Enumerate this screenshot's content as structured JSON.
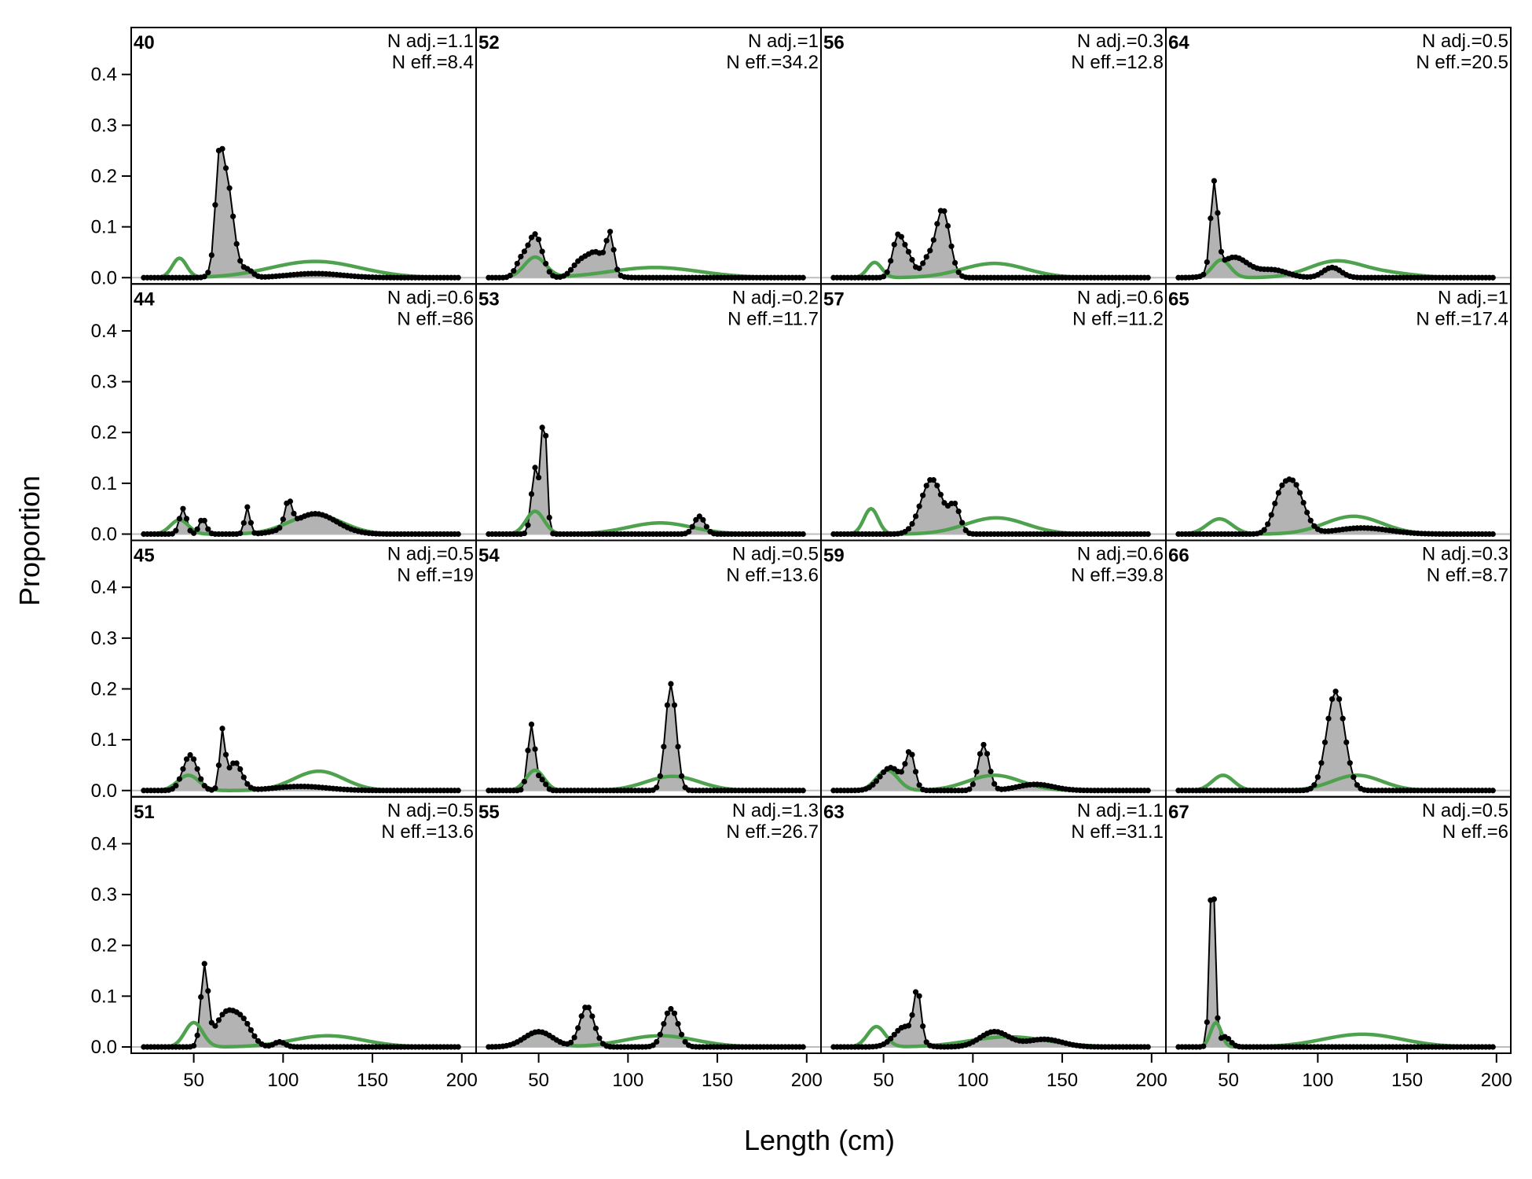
{
  "chart_data": {
    "type": "line",
    "xlabel": "Length (cm)",
    "ylabel": "Proportion",
    "xlim": [
      15,
      208
    ],
    "ylim": [
      0,
      0.48
    ],
    "x_ticks": [
      50,
      100,
      150,
      200
    ],
    "y_ticks": [
      0.0,
      0.1,
      0.2,
      0.3,
      0.4
    ],
    "y_tick_labels": [
      "0.0",
      "0.1",
      "0.2",
      "0.3",
      "0.4"
    ],
    "layout": {
      "rows": 4,
      "cols": 4
    },
    "colors": {
      "observed_line": "#000000",
      "observed_fill": "#b3b3b3",
      "expected_line": "#4ea24e",
      "zero_line": "#bdbdbd",
      "frame": "#000000"
    },
    "panels": [
      {
        "label": "40",
        "n_adj": "N adj.=1.1",
        "n_eff": "N eff.=8.4",
        "row": 0,
        "col": 0,
        "obs_peaks": [
          [
            68,
            0.198,
            4
          ],
          [
            64,
            0.13,
            2
          ],
          [
            118,
            0.008,
            15
          ],
          [
            80,
            0.015,
            3
          ]
        ],
        "exp_peaks": [
          [
            42,
            0.038,
            4
          ],
          [
            118,
            0.032,
            25
          ]
        ]
      },
      {
        "label": "52",
        "n_adj": "N adj.=1",
        "n_eff": "N eff.=34.2",
        "row": 0,
        "col": 1,
        "obs_peaks": [
          [
            48,
            0.085,
            4
          ],
          [
            40,
            0.03,
            3
          ],
          [
            82,
            0.05,
            6
          ],
          [
            90,
            0.07,
            2
          ],
          [
            72,
            0.02,
            4
          ]
        ],
        "exp_peaks": [
          [
            48,
            0.04,
            6
          ],
          [
            115,
            0.02,
            25
          ]
        ]
      },
      {
        "label": "56",
        "n_adj": "N adj.=0.3",
        "n_eff": "N eff.=12.8",
        "row": 0,
        "col": 2,
        "obs_peaks": [
          [
            58,
            0.08,
            3
          ],
          [
            64,
            0.04,
            3
          ],
          [
            83,
            0.135,
            4
          ],
          [
            74,
            0.03,
            3
          ]
        ],
        "exp_peaks": [
          [
            45,
            0.03,
            4
          ],
          [
            112,
            0.028,
            18
          ]
        ]
      },
      {
        "label": "64",
        "n_adj": "N adj.=0.5",
        "n_eff": "N eff.=20.5",
        "row": 0,
        "col": 3,
        "obs_peaks": [
          [
            42,
            0.175,
            2
          ],
          [
            53,
            0.04,
            8
          ],
          [
            75,
            0.015,
            8
          ],
          [
            108,
            0.02,
            5
          ]
        ],
        "exp_peaks": [
          [
            46,
            0.035,
            5
          ],
          [
            110,
            0.032,
            15
          ],
          [
            140,
            0.008,
            15
          ]
        ]
      },
      {
        "label": "44",
        "n_adj": "N adj.=0.6",
        "n_eff": "N eff.=86",
        "row": 1,
        "col": 0,
        "obs_peaks": [
          [
            44,
            0.05,
            2
          ],
          [
            55,
            0.03,
            2
          ],
          [
            80,
            0.053,
            1.5
          ],
          [
            118,
            0.04,
            12
          ],
          [
            103,
            0.05,
            2
          ]
        ],
        "exp_peaks": [
          [
            42,
            0.028,
            5
          ],
          [
            118,
            0.038,
            15
          ]
        ]
      },
      {
        "label": "53",
        "n_adj": "N adj.=0.2",
        "n_eff": "N eff.=11.7",
        "row": 1,
        "col": 1,
        "obs_peaks": [
          [
            53,
            0.24,
            1.5
          ],
          [
            48,
            0.13,
            2
          ],
          [
            140,
            0.035,
            3
          ]
        ],
        "exp_peaks": [
          [
            48,
            0.045,
            5
          ],
          [
            118,
            0.022,
            18
          ]
        ]
      },
      {
        "label": "57",
        "n_adj": "N adj.=0.6",
        "n_eff": "N eff.=11.2",
        "row": 1,
        "col": 2,
        "obs_peaks": [
          [
            77,
            0.108,
            6
          ],
          [
            90,
            0.05,
            3
          ]
        ],
        "exp_peaks": [
          [
            43,
            0.05,
            4
          ],
          [
            113,
            0.032,
            17
          ]
        ]
      },
      {
        "label": "65",
        "n_adj": "N adj.=1",
        "n_eff": "N eff.=17.4",
        "row": 1,
        "col": 3,
        "obs_peaks": [
          [
            86,
            0.1,
            6
          ],
          [
            78,
            0.04,
            4
          ],
          [
            125,
            0.012,
            15
          ]
        ],
        "exp_peaks": [
          [
            45,
            0.03,
            7
          ],
          [
            120,
            0.035,
            16
          ]
        ]
      },
      {
        "label": "45",
        "n_adj": "N adj.=0.5",
        "n_eff": "N eff.=19",
        "row": 2,
        "col": 0,
        "obs_peaks": [
          [
            48,
            0.07,
            4
          ],
          [
            66,
            0.11,
            1.5
          ],
          [
            73,
            0.055,
            4
          ],
          [
            110,
            0.008,
            15
          ]
        ],
        "exp_peaks": [
          [
            47,
            0.03,
            6
          ],
          [
            120,
            0.038,
            14
          ]
        ]
      },
      {
        "label": "54",
        "n_adj": "N adj.=0.5",
        "n_eff": "N eff.=13.6",
        "row": 2,
        "col": 1,
        "obs_peaks": [
          [
            46,
            0.13,
            2
          ],
          [
            124,
            0.21,
            3
          ],
          [
            52,
            0.02,
            2
          ]
        ],
        "exp_peaks": [
          [
            48,
            0.04,
            5
          ],
          [
            125,
            0.028,
            15
          ]
        ]
      },
      {
        "label": "59",
        "n_adj": "N adj.=0.6",
        "n_eff": "N eff.=39.8",
        "row": 2,
        "col": 2,
        "obs_peaks": [
          [
            54,
            0.045,
            6
          ],
          [
            65,
            0.07,
            2.5
          ],
          [
            106,
            0.09,
            3
          ],
          [
            135,
            0.012,
            10
          ]
        ],
        "exp_peaks": [
          [
            52,
            0.04,
            6
          ],
          [
            112,
            0.03,
            15
          ]
        ]
      },
      {
        "label": "66",
        "n_adj": "N adj.=0.3",
        "n_eff": "N eff.=8.7",
        "row": 2,
        "col": 3,
        "obs_peaks": [
          [
            110,
            0.195,
            5
          ]
        ],
        "exp_peaks": [
          [
            47,
            0.03,
            6
          ],
          [
            122,
            0.03,
            14
          ]
        ]
      },
      {
        "label": "51",
        "n_adj": "N adj.=0.5",
        "n_eff": "N eff.=13.6",
        "row": 3,
        "col": 0,
        "obs_peaks": [
          [
            56,
            0.155,
            2
          ],
          [
            68,
            0.065,
            6
          ],
          [
            78,
            0.04,
            5
          ],
          [
            98,
            0.01,
            3
          ]
        ],
        "exp_peaks": [
          [
            50,
            0.048,
            5
          ],
          [
            125,
            0.022,
            20
          ]
        ]
      },
      {
        "label": "55",
        "n_adj": "N adj.=1.3",
        "n_eff": "N eff.=26.7",
        "row": 3,
        "col": 1,
        "obs_peaks": [
          [
            50,
            0.03,
            8
          ],
          [
            77,
            0.08,
            4
          ],
          [
            124,
            0.075,
            4
          ]
        ],
        "exp_peaks": [
          [
            50,
            0.028,
            8
          ],
          [
            118,
            0.022,
            20
          ]
        ]
      },
      {
        "label": "63",
        "n_adj": "N adj.=1.1",
        "n_eff": "N eff.=31.1",
        "row": 3,
        "col": 2,
        "obs_peaks": [
          [
            69,
            0.095,
            2
          ],
          [
            62,
            0.04,
            6
          ],
          [
            112,
            0.03,
            8
          ],
          [
            140,
            0.015,
            10
          ]
        ],
        "exp_peaks": [
          [
            46,
            0.04,
            5
          ],
          [
            120,
            0.02,
            22
          ]
        ]
      },
      {
        "label": "67",
        "n_adj": "N adj.=0.5",
        "n_eff": "N eff.=6",
        "row": 3,
        "col": 3,
        "obs_peaks": [
          [
            41,
            0.36,
            1.5
          ],
          [
            48,
            0.02,
            3
          ]
        ],
        "exp_peaks": [
          [
            43,
            0.048,
            3
          ],
          [
            125,
            0.025,
            22
          ]
        ]
      }
    ]
  }
}
